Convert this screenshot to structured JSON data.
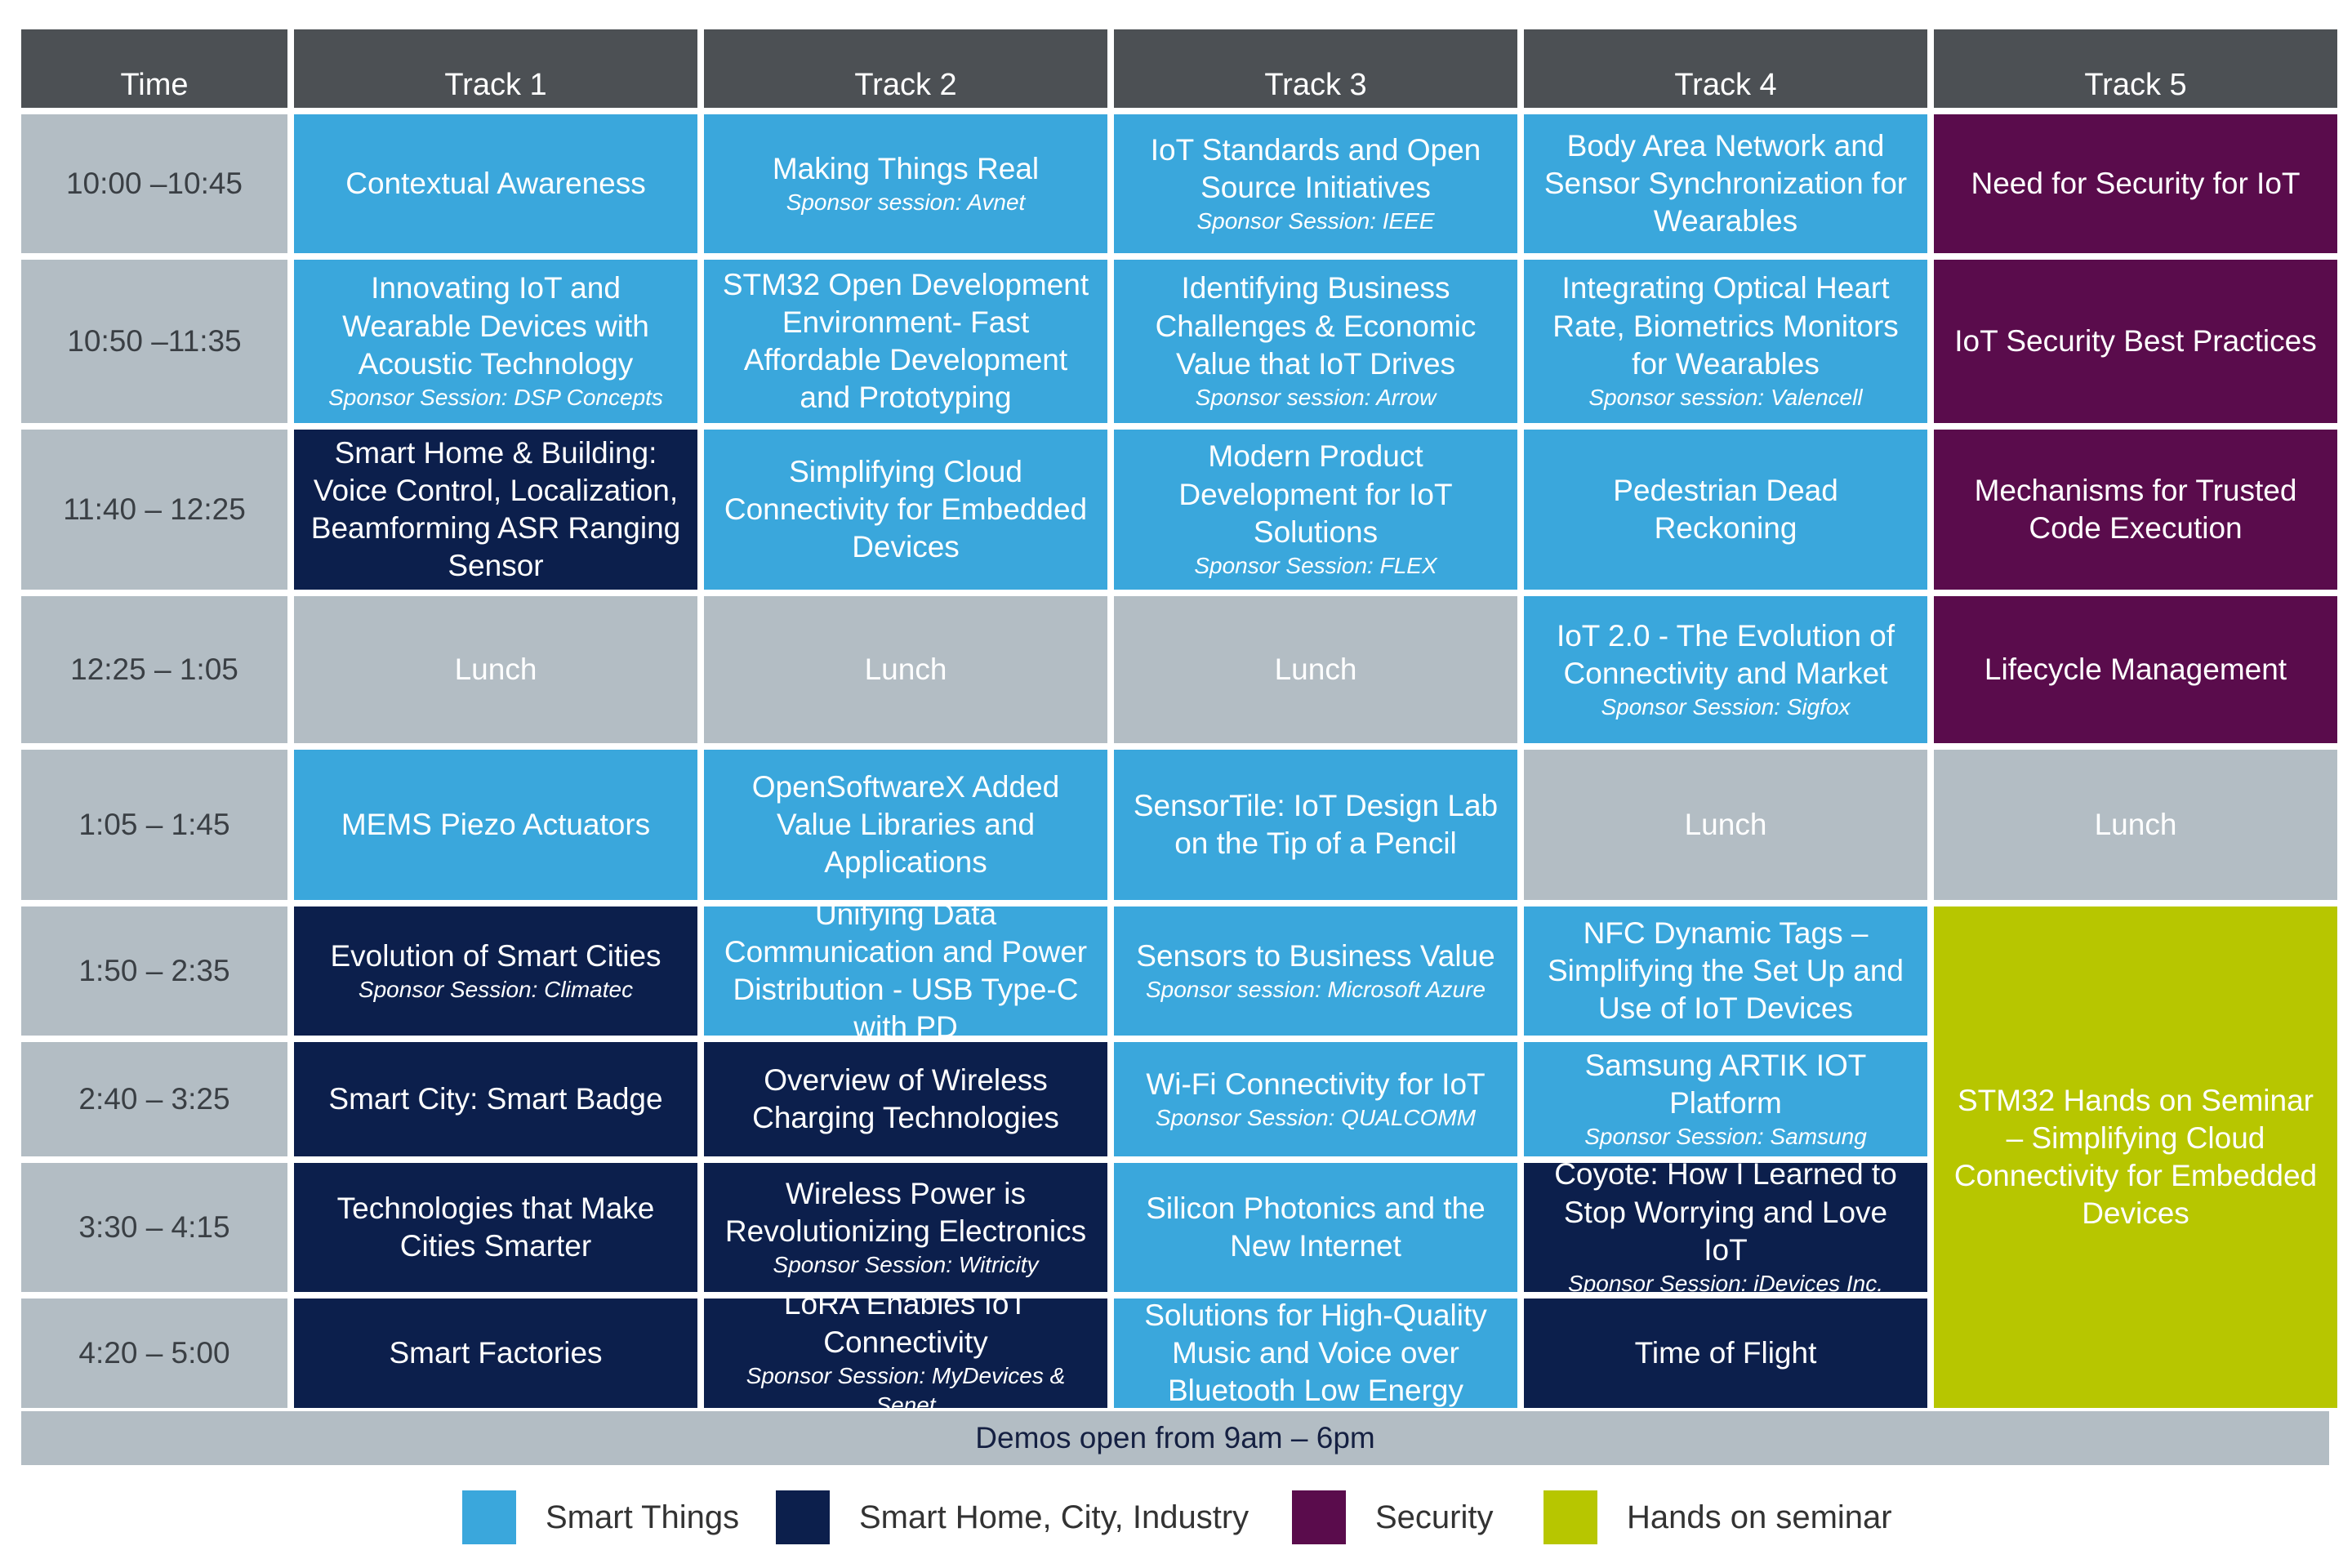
{
  "headers": [
    "Time",
    "Track 1",
    "Track 2",
    "Track 3",
    "Track 4",
    "Track 5"
  ],
  "colors": {
    "smart": "#3aa7dc",
    "home": "#0c1f4c",
    "security": "#5a0c4c",
    "hands": "#b7c600",
    "lunch": "#b3bdc4",
    "header": "#4c5054"
  },
  "rows": [
    {
      "time": "10:00 –10:45",
      "cells": [
        {
          "title": "Contextual Awareness",
          "sub": "",
          "cat": "smart"
        },
        {
          "title": "Making Things Real",
          "sub": "Sponsor session: Avnet",
          "cat": "smart"
        },
        {
          "title": "IoT Standards and Open Source Initiatives",
          "sub": "Sponsor Session: IEEE",
          "cat": "smart"
        },
        {
          "title": "Body Area Network and Sensor Synchronization for Wearables",
          "sub": "",
          "cat": "smart"
        },
        {
          "title": "Need for Security for IoT",
          "sub": "",
          "cat": "sec"
        }
      ]
    },
    {
      "time": "10:50 –11:35",
      "cells": [
        {
          "title": "Innovating IoT and Wearable Devices with Acoustic Technology",
          "sub": "Sponsor Session: DSP Concepts",
          "cat": "smart"
        },
        {
          "title": "STM32 Open Development Environment- Fast Affordable Development and Prototyping",
          "sub": "",
          "cat": "smart"
        },
        {
          "title": "Identifying Business Challenges & Economic Value that IoT Drives",
          "sub": "Sponsor session: Arrow",
          "cat": "smart"
        },
        {
          "title": "Integrating Optical Heart Rate, Biometrics Monitors for Wearables",
          "sub": "Sponsor session: Valencell",
          "cat": "smart"
        },
        {
          "title": "IoT Security Best Practices",
          "sub": "",
          "cat": "sec"
        }
      ]
    },
    {
      "time": "11:40 – 12:25",
      "cells": [
        {
          "title": "Smart Home & Building: Voice Control, Localization, Beamforming ASR Ranging Sensor",
          "sub": "",
          "cat": "home"
        },
        {
          "title": "Simplifying Cloud Connectivity for Embedded Devices",
          "sub": "",
          "cat": "smart"
        },
        {
          "title": "Modern Product Development for IoT Solutions",
          "sub": "Sponsor Session: FLEX",
          "cat": "smart"
        },
        {
          "title": "Pedestrian Dead Reckoning",
          "sub": "",
          "cat": "smart"
        },
        {
          "title": "Mechanisms for Trusted Code Execution",
          "sub": "",
          "cat": "sec"
        }
      ]
    },
    {
      "time": "12:25 – 1:05",
      "cells": [
        {
          "title": "Lunch",
          "sub": "",
          "cat": "lunch"
        },
        {
          "title": "Lunch",
          "sub": "",
          "cat": "lunch"
        },
        {
          "title": "Lunch",
          "sub": "",
          "cat": "lunch"
        },
        {
          "title": "IoT 2.0 - The Evolution of Connectivity and Market",
          "sub": "Sponsor Session: Sigfox",
          "cat": "smart"
        },
        {
          "title": "Lifecycle Management",
          "sub": "",
          "cat": "sec"
        }
      ]
    },
    {
      "time": "1:05 – 1:45",
      "cells": [
        {
          "title": "MEMS Piezo Actuators",
          "sub": "",
          "cat": "smart"
        },
        {
          "title": "OpenSoftwareX Added Value Libraries and Applications",
          "sub": "",
          "cat": "smart"
        },
        {
          "title": "SensorTile: IoT Design Lab on the Tip of a Pencil",
          "sub": "",
          "cat": "smart"
        },
        {
          "title": "Lunch",
          "sub": "",
          "cat": "lunch"
        },
        {
          "title": "Lunch",
          "sub": "",
          "cat": "lunch"
        }
      ]
    },
    {
      "time": "1:50 – 2:35",
      "cells": [
        {
          "title": "Evolution of Smart Cities",
          "sub": "Sponsor Session: Climatec",
          "cat": "home"
        },
        {
          "title": "Unifying Data Communication and Power Distribution - USB Type-C with PD",
          "sub": "",
          "cat": "smart"
        },
        {
          "title": "Sensors to Business Value",
          "sub": "Sponsor session: Microsoft Azure",
          "cat": "smart"
        },
        {
          "title": "NFC Dynamic Tags – Simplifying the Set Up and Use of IoT Devices",
          "sub": "",
          "cat": "smart"
        },
        {
          "title": "STM32 Hands on Seminar – Simplifying Cloud Connectivity for Embedded Devices",
          "sub": "",
          "cat": "hands"
        }
      ]
    },
    {
      "time": "2:40 – 3:25",
      "cells": [
        {
          "title": "Smart City: Smart Badge",
          "sub": "",
          "cat": "home"
        },
        {
          "title": "Overview of Wireless Charging Technologies",
          "sub": "",
          "cat": "home"
        },
        {
          "title": "Wi-Fi Connectivity for IoT",
          "sub": "Sponsor Session: QUALCOMM",
          "cat": "smart"
        },
        {
          "title": "Samsung ARTIK IOT Platform",
          "sub": "Sponsor Session: Samsung",
          "cat": "smart"
        }
      ]
    },
    {
      "time": "3:30 – 4:15",
      "cells": [
        {
          "title": "Technologies that Make Cities Smarter",
          "sub": "",
          "cat": "home"
        },
        {
          "title": "Wireless Power is Revolutionizing Electronics",
          "sub": "Sponsor Session: Witricity",
          "cat": "home"
        },
        {
          "title": "Silicon Photonics and the New Internet",
          "sub": "",
          "cat": "smart"
        },
        {
          "title": "Coyote: How I Learned to Stop Worrying and Love IoT",
          "sub": "Sponsor Session: iDevices Inc.",
          "cat": "home"
        }
      ]
    },
    {
      "time": "4:20 – 5:00",
      "cells": [
        {
          "title": "Smart Factories",
          "sub": "",
          "cat": "home"
        },
        {
          "title": "LoRA Enables IoT Connectivity",
          "sub": "Sponsor Session: MyDevices & Senet",
          "cat": "home"
        },
        {
          "title": "Solutions for High-Quality Music and Voice over Bluetooth Low Energy",
          "sub": "",
          "cat": "smart"
        },
        {
          "title": "Time of Flight",
          "sub": "",
          "cat": "home"
        }
      ]
    }
  ],
  "demos": "Demos open from 9am – 6pm",
  "legend": [
    {
      "label": "Smart Things",
      "color": "#3aa7dc"
    },
    {
      "label": "Smart Home, City, Industry",
      "color": "#0c1f4c"
    },
    {
      "label": "Security",
      "color": "#5a0c4c"
    },
    {
      "label": "Hands on seminar",
      "color": "#b7c600"
    }
  ]
}
